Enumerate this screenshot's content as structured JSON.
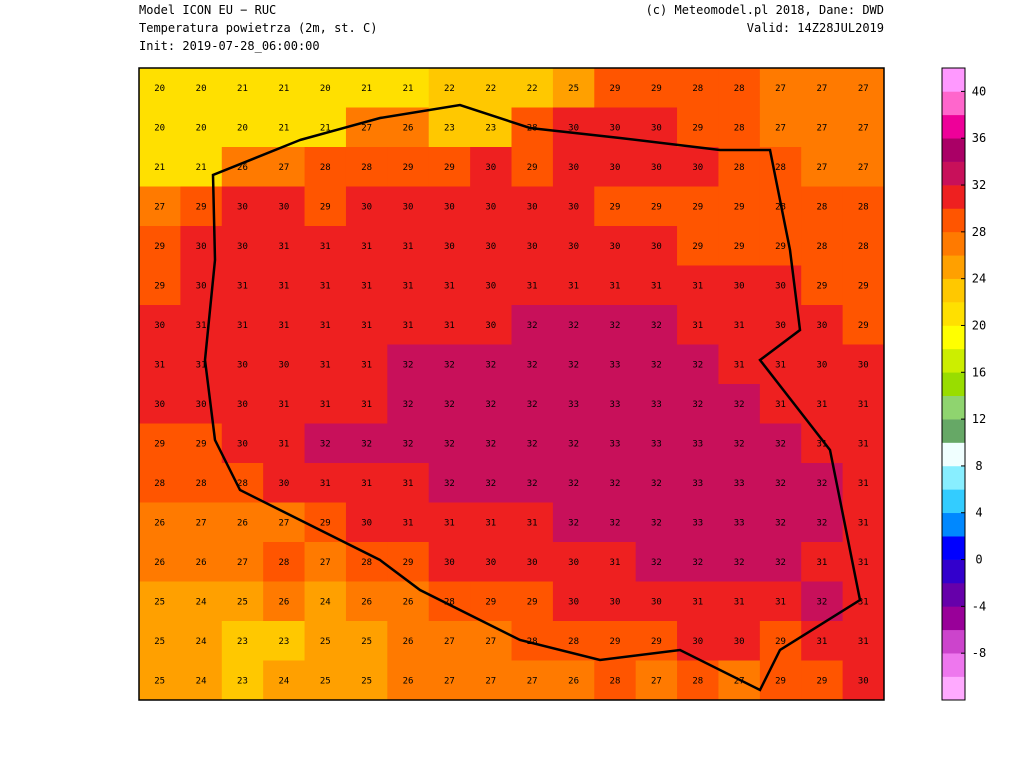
{
  "header": {
    "model": "Model ICON EU − RUC",
    "variable": "Temperatura powietrza (2m, st. C)",
    "init": "Init: 2019-07-28_06:00:00",
    "credit": "(c) Meteomodel.pl 2018, Dane: DWD",
    "valid": "Valid: 14Z28JUL2019"
  },
  "colorbar": {
    "lim": [
      -12,
      42
    ],
    "ticks": [
      40,
      36,
      32,
      28,
      24,
      20,
      16,
      12,
      8,
      4,
      0,
      -4,
      -8
    ],
    "colors": [
      "#ffaaff",
      "#ee77ee",
      "#cc44cc",
      "#990099",
      "#6600aa",
      "#3300cc",
      "#0000ff",
      "#0088ff",
      "#33ccff",
      "#88eeff",
      "#f0ffff",
      "#66a866",
      "#8fd46f",
      "#99dd00",
      "#ccee00",
      "#ffff00",
      "#ffe000",
      "#ffc800",
      "#ffa000",
      "#ff7a00",
      "#ff5500",
      "#ee2020",
      "#c8105a",
      "#aa0066",
      "#ee0099",
      "#ff66cc",
      "#ff99ff"
    ]
  },
  "grid": [
    [
      20,
      20,
      21,
      21,
      20,
      21,
      21,
      22,
      22,
      22,
      25,
      29,
      29,
      28,
      28,
      27,
      27,
      27
    ],
    [
      20,
      20,
      20,
      21,
      21,
      27,
      26,
      23,
      23,
      28,
      30,
      30,
      30,
      29,
      28,
      27,
      27,
      27
    ],
    [
      21,
      21,
      26,
      27,
      28,
      28,
      29,
      29,
      30,
      29,
      30,
      30,
      30,
      30,
      28,
      28,
      27,
      27
    ],
    [
      27,
      29,
      30,
      30,
      29,
      30,
      30,
      30,
      30,
      30,
      30,
      29,
      29,
      29,
      29,
      28,
      28,
      28
    ],
    [
      29,
      30,
      30,
      31,
      31,
      31,
      31,
      30,
      30,
      30,
      30,
      30,
      30,
      29,
      29,
      29,
      28,
      28
    ],
    [
      29,
      30,
      31,
      31,
      31,
      31,
      31,
      31,
      30,
      31,
      31,
      31,
      31,
      31,
      30,
      30,
      29,
      29
    ],
    [
      30,
      31,
      31,
      31,
      31,
      31,
      31,
      31,
      30,
      32,
      32,
      32,
      32,
      31,
      31,
      30,
      30,
      29
    ],
    [
      31,
      31,
      30,
      30,
      31,
      31,
      32,
      32,
      32,
      32,
      32,
      33,
      32,
      32,
      31,
      31,
      30,
      30
    ],
    [
      30,
      30,
      30,
      31,
      31,
      31,
      32,
      32,
      32,
      32,
      33,
      33,
      33,
      32,
      32,
      31,
      31,
      31
    ],
    [
      29,
      29,
      30,
      31,
      32,
      32,
      32,
      32,
      32,
      32,
      32,
      33,
      33,
      33,
      32,
      32,
      31,
      31
    ],
    [
      28,
      28,
      28,
      30,
      31,
      31,
      31,
      32,
      32,
      32,
      32,
      32,
      32,
      33,
      33,
      32,
      32,
      31
    ],
    [
      26,
      27,
      26,
      27,
      29,
      30,
      31,
      31,
      31,
      31,
      32,
      32,
      32,
      33,
      33,
      32,
      32,
      31
    ],
    [
      26,
      26,
      27,
      28,
      27,
      28,
      29,
      30,
      30,
      30,
      30,
      31,
      32,
      32,
      32,
      32,
      31,
      31
    ],
    [
      25,
      24,
      25,
      26,
      24,
      26,
      26,
      28,
      29,
      29,
      30,
      30,
      30,
      31,
      31,
      31,
      32,
      31
    ],
    [
      25,
      24,
      23,
      23,
      25,
      25,
      26,
      27,
      27,
      28,
      28,
      29,
      29,
      30,
      30,
      29,
      31,
      31
    ],
    [
      25,
      24,
      23,
      24,
      25,
      25,
      26,
      27,
      27,
      27,
      26,
      28,
      27,
      28,
      27,
      29,
      29,
      30
    ]
  ]
}
